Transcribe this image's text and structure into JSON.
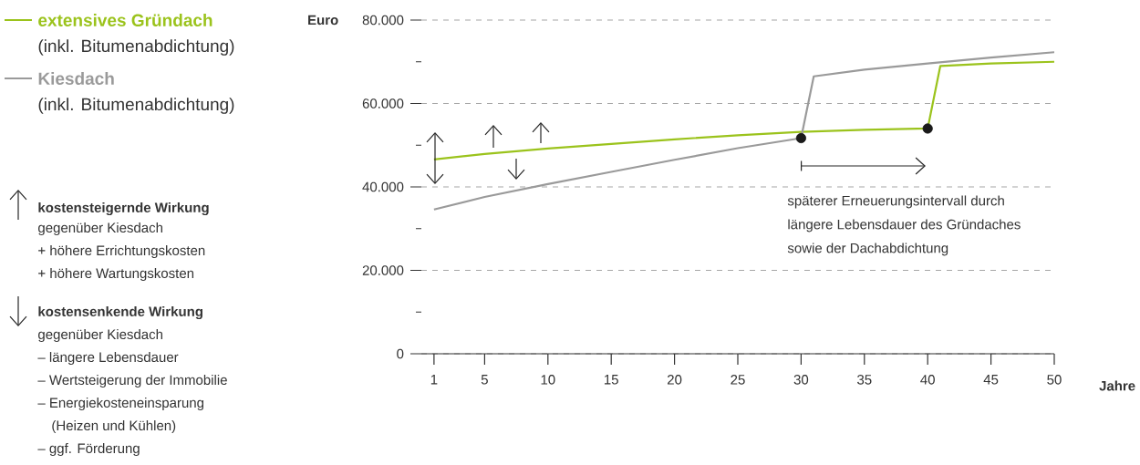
{
  "chart_data": {
    "type": "line",
    "xlabel": "Jahre",
    "ylabel": "Euro",
    "xlim": [
      0,
      50
    ],
    "xticks": [
      1,
      5,
      10,
      15,
      20,
      25,
      30,
      35,
      40,
      45,
      50
    ],
    "ylim": [
      0,
      80000
    ],
    "yticks": [
      0,
      {
        "value": 10000,
        "label": null
      },
      {
        "value": 20000,
        "label": "20.000"
      },
      {
        "value": 30000,
        "label": null
      },
      {
        "value": 40000,
        "label": "40.000"
      },
      {
        "value": 50000,
        "label": null
      },
      {
        "value": 60000,
        "label": "60.000"
      },
      {
        "value": 70000,
        "label": null
      },
      {
        "value": 80000,
        "label": "80.000"
      }
    ],
    "grid": "y",
    "legend": "left",
    "series": [
      {
        "name": "extensives Gründach",
        "color": "#9bc31c",
        "x": [
          1,
          5,
          10,
          15,
          20,
          25,
          30,
          35,
          40,
          41,
          45,
          50
        ],
        "values": [
          46600,
          47900,
          49200,
          50300,
          51400,
          52400,
          53200,
          53700,
          54000,
          69000,
          69600,
          70000
        ]
      },
      {
        "name": "Kiesdach",
        "color": "#9a9a9a",
        "x": [
          1,
          5,
          10,
          15,
          20,
          25,
          30,
          31,
          35,
          40,
          45,
          50
        ],
        "values": [
          34600,
          37600,
          40700,
          43600,
          46500,
          49300,
          51700,
          66500,
          68100,
          69600,
          71000,
          72300
        ]
      },
      {
        "type": "scatter",
        "color": "#1a1a1a",
        "marker": "circle",
        "x": [
          30,
          40
        ],
        "values": [
          51700,
          54000
        ]
      }
    ],
    "annotations": [
      "(inkl. Bitumenabdichtung)",
      "(inkl. Bitumenabdichtung)",
      "kostensteigernde Wirkung",
      "gegenüber Kiesdach",
      "+ höhere Errichtungskosten",
      "+ höhere Wartungskosten",
      "kostensenkende Wirkung",
      "gegenüber Kiesdach",
      "– längere Lebensdauer",
      "– Wertsteigerung der Immobilie",
      "– Energiekosteneinsparung",
      "(Heizen und Kühlen)",
      "– ggf. Förderung",
      "späterer Erneuerungsintervall durch längere Lebensdauer des Gründaches sowie der Dachabdichtung"
    ]
  }
}
